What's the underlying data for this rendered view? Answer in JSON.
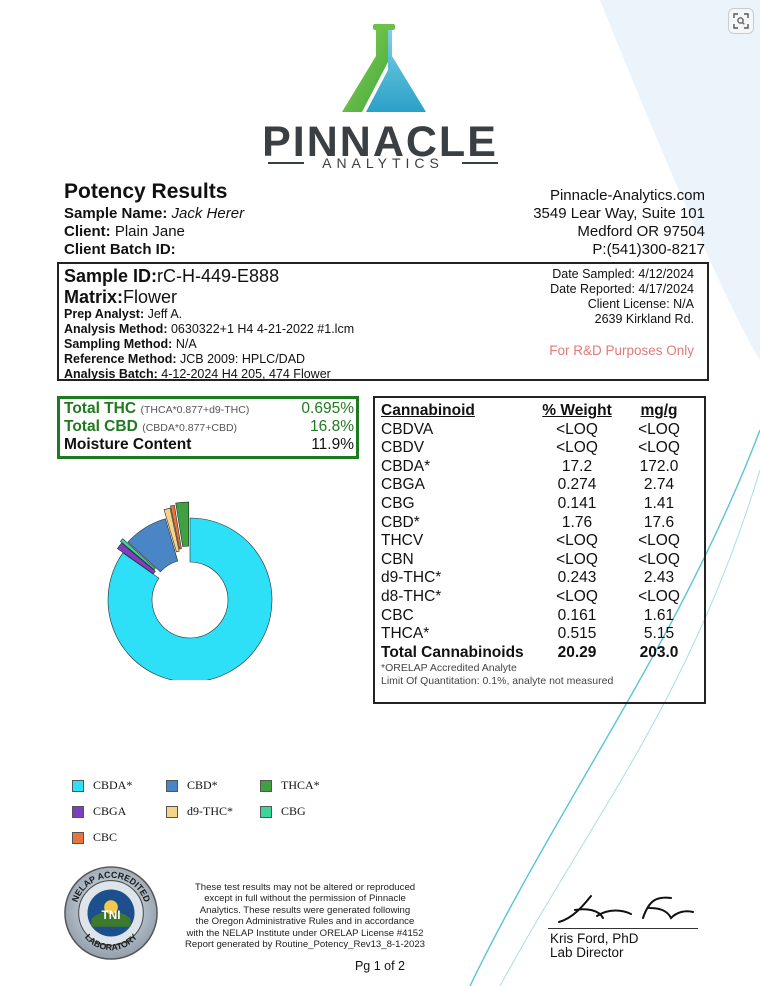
{
  "brand": {
    "name": "PINNACLE",
    "subtitle": "ANALYTICS"
  },
  "report": {
    "title": "Potency Results",
    "sample_name_label": "Sample Name:",
    "sample_name": "Jack Herer",
    "client_label": "Client:",
    "client": "Plain Jane",
    "batch_label": "Client Batch ID:",
    "batch_id": ""
  },
  "contact": {
    "website": "Pinnacle-Analytics.com",
    "address1": "3549 Lear Way, Suite 101",
    "address2": "Medford OR 97504",
    "phone": "P:(541)300-8217"
  },
  "sample": {
    "id_label": "Sample ID:",
    "id": "rC-H-449-E888",
    "matrix_label": "Matrix:",
    "matrix": "Flower",
    "rows": [
      {
        "label": "Prep Analyst:",
        "value": "Jeff A."
      },
      {
        "label": "Analysis Method:",
        "value": "0630322+1 H4 4-21-2022 #1.lcm"
      },
      {
        "label": "Sampling Method:",
        "value": "N/A"
      },
      {
        "label": "Reference Method:",
        "value": "JCB 2009: HPLC/DAD"
      },
      {
        "label": "Analysis Batch:",
        "value": "4-12-2024 H4 205, 474 Flower"
      }
    ],
    "date_sampled": "Date Sampled:  4/12/2024",
    "date_reported": "Date Reported: 4/17/2024",
    "license": "Client License: N/A",
    "location": "2639 Kirkland Rd.",
    "purpose": "For R&D Purposes Only"
  },
  "totals": [
    {
      "label": "Total THC",
      "note": "(THCA*0.877+d9-THC)",
      "value": "0.695%"
    },
    {
      "label": "Total CBD",
      "note": "(CBDA*0.877+CBD)",
      "value": "16.8%"
    },
    {
      "label": "Moisture Content",
      "note": "",
      "value": "11.9%"
    }
  ],
  "cannabinoids": {
    "headers": [
      "Cannabinoid",
      "% Weight",
      "mg/g"
    ],
    "rows": [
      [
        "CBDVA",
        "<LOQ",
        "<LOQ"
      ],
      [
        "CBDV",
        "<LOQ",
        "<LOQ"
      ],
      [
        "CBDA*",
        "17.2",
        "172.0"
      ],
      [
        "CBGA",
        "0.274",
        "2.74"
      ],
      [
        "CBG",
        "0.141",
        "1.41"
      ],
      [
        "CBD*",
        "1.76",
        "17.6"
      ],
      [
        "THCV",
        "<LOQ",
        "<LOQ"
      ],
      [
        "CBN",
        "<LOQ",
        "<LOQ"
      ],
      [
        "d9-THC*",
        "0.243",
        "2.43"
      ],
      [
        "d8-THC*",
        "<LOQ",
        "<LOQ"
      ],
      [
        "CBC",
        "0.161",
        "1.61"
      ],
      [
        "THCA*",
        "0.515",
        "5.15"
      ]
    ],
    "total": [
      "Total Cannabinoids",
      "20.29",
      "203.0"
    ],
    "note1": "*ORELAP Accredited Analyte",
    "note2": "Limit Of Quantitation: 0.1%, analyte not measured"
  },
  "chart_data": {
    "type": "pie",
    "series": [
      {
        "name": "CBDA*",
        "values": [
          17.2
        ],
        "color": "#2ee0f7"
      },
      {
        "name": "CBGA",
        "values": [
          0.274
        ],
        "color": "#7b3fbf"
      },
      {
        "name": "CBG",
        "values": [
          0.141
        ],
        "color": "#38d89a"
      },
      {
        "name": "CBD*",
        "values": [
          1.76
        ],
        "color": "#4a86c5"
      },
      {
        "name": "d9-THC*",
        "values": [
          0.243
        ],
        "color": "#f5d48a"
      },
      {
        "name": "CBC",
        "values": [
          0.161
        ],
        "color": "#e8743a"
      },
      {
        "name": "THCA*",
        "values": [
          0.515
        ],
        "color": "#3fa13f"
      }
    ],
    "legend": [
      {
        "label": "CBDA*",
        "color": "#2ee0f7"
      },
      {
        "label": "CBD*",
        "color": "#4a86c5"
      },
      {
        "label": "THCA*",
        "color": "#3fa13f"
      },
      {
        "label": "CBGA",
        "color": "#7b3fbf"
      },
      {
        "label": "d9-THC*",
        "color": "#f5d48a"
      },
      {
        "label": "CBG",
        "color": "#38d89a"
      },
      {
        "label": "CBC",
        "color": "#e8743a"
      }
    ],
    "hole": true,
    "legend_position": "bottom-left"
  },
  "footer": {
    "seal_text": "NELAP ACCREDITED LABORATORY TNI",
    "disclaimer": [
      "These test results may not be altered or reproduced",
      "except in full without the permission of Pinnacle",
      "Analytics. These results were generated following",
      "the Oregon Administrative Rules and in accordance",
      "with the NELAP Institute under ORELAP License #4152",
      "Report generated by Routine_Potency_Rev13_8-1-2023"
    ],
    "signature": "Kris Ford",
    "signer_name": "Kris Ford, PhD",
    "signer_title": "Lab Director",
    "page": "Pg 1 of 2"
  },
  "colors": {
    "accent_green": "#1f7a1f",
    "rnd_text": "#e07a7a",
    "logo_teal": "#3cc0c8",
    "logo_green": "#6cc04a"
  },
  "icons": {
    "zoom": "zoom-icon",
    "logo": "flask-logo-icon"
  }
}
